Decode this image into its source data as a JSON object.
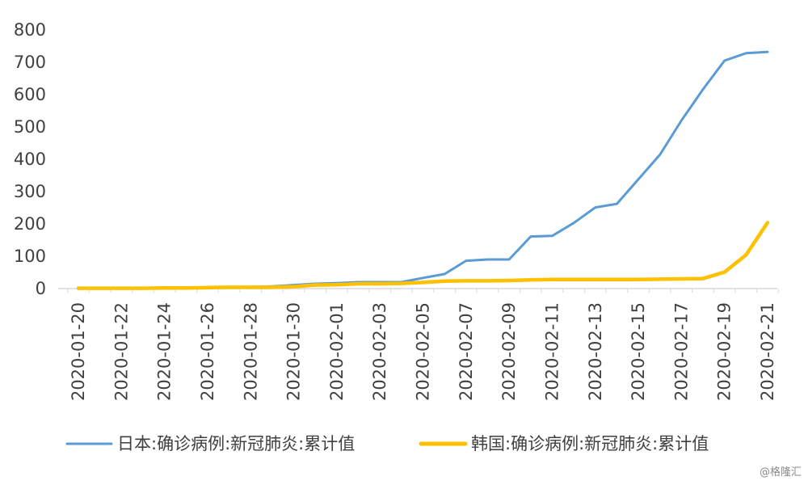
{
  "chart_data": {
    "type": "line",
    "title": "",
    "xlabel": "",
    "ylabel": "",
    "ylim": [
      0,
      800
    ],
    "yticks": [
      0,
      100,
      200,
      300,
      400,
      500,
      600,
      700,
      800
    ],
    "grid": false,
    "legend_position": "bottom",
    "x": [
      "2020-01-20",
      "2020-01-21",
      "2020-01-22",
      "2020-01-23",
      "2020-01-24",
      "2020-01-25",
      "2020-01-26",
      "2020-01-27",
      "2020-01-28",
      "2020-01-29",
      "2020-01-30",
      "2020-01-31",
      "2020-02-01",
      "2020-02-02",
      "2020-02-03",
      "2020-02-04",
      "2020-02-05",
      "2020-02-06",
      "2020-02-07",
      "2020-02-08",
      "2020-02-09",
      "2020-02-10",
      "2020-02-11",
      "2020-02-12",
      "2020-02-13",
      "2020-02-14",
      "2020-02-15",
      "2020-02-16",
      "2020-02-17",
      "2020-02-18",
      "2020-02-19",
      "2020-02-20",
      "2020-02-21"
    ],
    "xtick_labels": [
      "2020-01-20",
      "2020-01-22",
      "2020-01-24",
      "2020-01-26",
      "2020-01-28",
      "2020-01-30",
      "2020-02-01",
      "2020-02-03",
      "2020-02-05",
      "2020-02-07",
      "2020-02-09",
      "2020-02-11",
      "2020-02-13",
      "2020-02-15",
      "2020-02-17",
      "2020-02-19",
      "2020-02-21"
    ],
    "series": [
      {
        "name": "日本:确诊病例:新冠肺炎:累计值",
        "color": "#5b9bd5",
        "values": [
          1,
          1,
          1,
          1,
          2,
          3,
          4,
          4,
          5,
          7,
          11,
          15,
          17,
          20,
          20,
          20,
          33,
          45,
          86,
          90,
          90,
          161,
          163,
          203,
          251,
          262,
          338,
          414,
          520,
          616,
          705,
          728,
          732
        ]
      },
      {
        "name": "韩国:确诊病例:新冠肺炎:累计值",
        "color": "#ffc000",
        "values": [
          1,
          1,
          1,
          1,
          2,
          2,
          3,
          4,
          4,
          4,
          6,
          11,
          12,
          15,
          15,
          16,
          19,
          23,
          24,
          24,
          25,
          27,
          28,
          28,
          28,
          28,
          28,
          29,
          30,
          31,
          51,
          104,
          204
        ]
      }
    ]
  },
  "watermark": "@格隆汇"
}
